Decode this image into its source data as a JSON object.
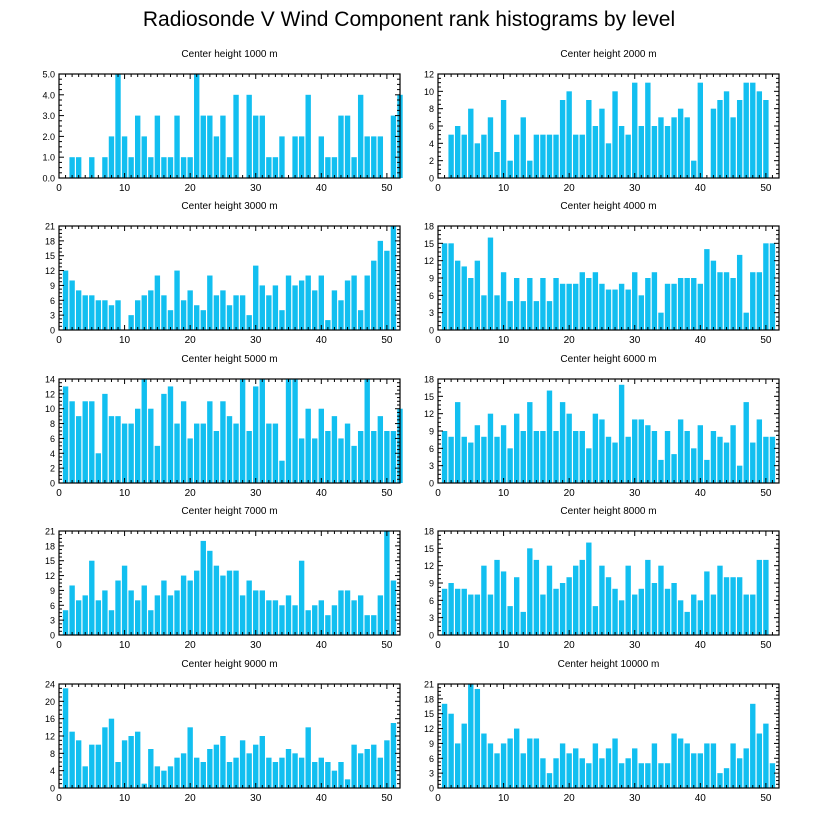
{
  "title": "Radiosonde V Wind Component rank histograms by level",
  "bar_color": "#12bff0",
  "chart_data": [
    {
      "type": "bar",
      "title": "Center height 1000 m",
      "ylim": [
        0,
        5
      ],
      "yticks": [
        0,
        1,
        2,
        3,
        4,
        5
      ],
      "ytick_labels": [
        "0.0",
        "1.0",
        "2.0",
        "3.0",
        "4.0",
        "5.0"
      ],
      "xlim": [
        0,
        52
      ],
      "xticks": [
        0,
        10,
        20,
        30,
        40,
        50
      ],
      "values": [
        0,
        1,
        1,
        0,
        1,
        0,
        1,
        2,
        5,
        2,
        1,
        3,
        2,
        1,
        3,
        1,
        1,
        3,
        1,
        1,
        5,
        3,
        3,
        2,
        3,
        1,
        4,
        0,
        4,
        3,
        3,
        1,
        1,
        2,
        0,
        2,
        2,
        4,
        0,
        2,
        1,
        1,
        3,
        3,
        1,
        4,
        2,
        2,
        2,
        0,
        3,
        4
      ]
    },
    {
      "type": "bar",
      "title": "Center height 2000 m",
      "ylim": [
        0,
        12
      ],
      "yticks": [
        0,
        2,
        4,
        6,
        8,
        10,
        12
      ],
      "ytick_labels": [
        "0",
        "2",
        "4",
        "6",
        "8",
        "10",
        "12"
      ],
      "xlim": [
        0,
        52
      ],
      "xticks": [
        0,
        10,
        20,
        30,
        40,
        50
      ],
      "values": [
        0,
        5,
        6,
        5,
        8,
        4,
        5,
        7,
        3,
        9,
        2,
        5,
        7,
        2,
        5,
        5,
        5,
        5,
        9,
        10,
        5,
        5,
        9,
        6,
        8,
        4,
        10,
        6,
        5,
        11,
        6,
        11,
        6,
        7,
        6,
        7,
        8,
        7,
        2,
        11,
        0,
        8,
        9,
        10,
        7,
        9,
        11,
        11,
        10,
        9,
        0,
        0
      ]
    },
    {
      "type": "bar",
      "title": "Center height 3000 m",
      "ylim": [
        0,
        21
      ],
      "yticks": [
        0,
        3,
        6,
        9,
        12,
        15,
        18,
        21
      ],
      "ytick_labels": [
        "0",
        "3",
        "6",
        "9",
        "12",
        "15",
        "18",
        "21"
      ],
      "xlim": [
        0,
        52
      ],
      "xticks": [
        0,
        10,
        20,
        30,
        40,
        50
      ],
      "values": [
        12,
        10,
        8,
        7,
        7,
        6,
        6,
        5,
        6,
        0,
        3,
        6,
        7,
        8,
        11,
        7,
        4,
        12,
        6,
        8,
        5,
        4,
        11,
        7,
        8,
        5,
        7,
        7,
        3,
        13,
        9,
        7,
        9,
        4,
        11,
        9,
        10,
        11,
        8,
        11,
        2,
        8,
        6,
        10,
        11,
        4,
        11,
        14,
        18,
        16,
        21,
        0
      ]
    },
    {
      "type": "bar",
      "title": "Center height 4000 m",
      "ylim": [
        0,
        18
      ],
      "yticks": [
        0,
        3,
        6,
        9,
        12,
        15,
        18
      ],
      "ytick_labels": [
        "0",
        "3",
        "6",
        "9",
        "12",
        "15",
        "18"
      ],
      "xlim": [
        0,
        52
      ],
      "xticks": [
        0,
        10,
        20,
        30,
        40,
        50
      ],
      "values": [
        15,
        15,
        12,
        11,
        9,
        12,
        6,
        16,
        6,
        10,
        5,
        9,
        5,
        9,
        5,
        9,
        5,
        9,
        8,
        8,
        8,
        10,
        9,
        10,
        8,
        7,
        7,
        8,
        7,
        10,
        6,
        9,
        10,
        3,
        8,
        8,
        9,
        9,
        9,
        8,
        14,
        12,
        10,
        10,
        9,
        13,
        3,
        10,
        10,
        15,
        15,
        0
      ]
    },
    {
      "type": "bar",
      "title": "Center height 5000 m",
      "ylim": [
        0,
        14
      ],
      "yticks": [
        0,
        2,
        4,
        6,
        8,
        10,
        12,
        14
      ],
      "ytick_labels": [
        "0",
        "2",
        "4",
        "6",
        "8",
        "10",
        "12",
        "14"
      ],
      "xlim": [
        0,
        52
      ],
      "xticks": [
        0,
        10,
        20,
        30,
        40,
        50
      ],
      "values": [
        13,
        11,
        9,
        11,
        11,
        4,
        12,
        9,
        9,
        8,
        8,
        10,
        14,
        10,
        5,
        12,
        13,
        8,
        11,
        6,
        8,
        8,
        11,
        7,
        11,
        9,
        8,
        14,
        7,
        13,
        14,
        8,
        8,
        3,
        14,
        14,
        6,
        10,
        6,
        10,
        7,
        9,
        6,
        8,
        5,
        7,
        14,
        7,
        9,
        7,
        7,
        10
      ]
    },
    {
      "type": "bar",
      "title": "Center height 6000 m",
      "ylim": [
        0,
        18
      ],
      "yticks": [
        0,
        3,
        6,
        9,
        12,
        15,
        18
      ],
      "ytick_labels": [
        "0",
        "3",
        "6",
        "9",
        "12",
        "15",
        "18"
      ],
      "xlim": [
        0,
        52
      ],
      "xticks": [
        0,
        10,
        20,
        30,
        40,
        50
      ],
      "values": [
        9,
        8,
        14,
        8,
        7,
        10,
        8,
        12,
        8,
        10,
        6,
        12,
        9,
        14,
        9,
        9,
        16,
        9,
        14,
        12,
        9,
        9,
        6,
        12,
        11,
        8,
        7,
        17,
        8,
        11,
        11,
        10,
        9,
        4,
        9,
        5,
        11,
        9,
        6,
        10,
        4,
        9,
        8,
        7,
        10,
        3,
        14,
        7,
        11,
        8,
        8,
        0
      ]
    },
    {
      "type": "bar",
      "title": "Center height 7000 m",
      "ylim": [
        0,
        21
      ],
      "yticks": [
        0,
        3,
        6,
        9,
        12,
        15,
        18,
        21
      ],
      "ytick_labels": [
        "0",
        "3",
        "6",
        "9",
        "12",
        "15",
        "18",
        "21"
      ],
      "xlim": [
        0,
        52
      ],
      "xticks": [
        0,
        10,
        20,
        30,
        40,
        50
      ],
      "values": [
        5,
        10,
        7,
        8,
        15,
        7,
        9,
        5,
        11,
        14,
        9,
        7,
        10,
        5,
        8,
        11,
        8,
        9,
        12,
        11,
        13,
        19,
        17,
        14,
        12,
        13,
        13,
        8,
        11,
        9,
        9,
        7,
        7,
        6,
        8,
        6,
        15,
        5,
        6,
        7,
        4,
        6,
        9,
        9,
        7,
        8,
        4,
        4,
        8,
        21,
        11,
        0
      ]
    },
    {
      "type": "bar",
      "title": "Center height 8000 m",
      "ylim": [
        0,
        18
      ],
      "yticks": [
        0,
        3,
        6,
        9,
        12,
        15,
        18
      ],
      "ytick_labels": [
        "0",
        "3",
        "6",
        "9",
        "12",
        "15",
        "18"
      ],
      "xlim": [
        0,
        52
      ],
      "xticks": [
        0,
        10,
        20,
        30,
        40,
        50
      ],
      "values": [
        8,
        9,
        8,
        8,
        7,
        7,
        12,
        7,
        13,
        11,
        5,
        10,
        4,
        15,
        13,
        7,
        12,
        8,
        9,
        10,
        12,
        13,
        16,
        5,
        12,
        10,
        8,
        6,
        12,
        7,
        8,
        13,
        9,
        12,
        8,
        9,
        6,
        4,
        7,
        6,
        11,
        7,
        12,
        10,
        10,
        10,
        7,
        7,
        13,
        13,
        0,
        0
      ]
    },
    {
      "type": "bar",
      "title": "Center height 9000 m",
      "ylim": [
        0,
        24
      ],
      "yticks": [
        0,
        4,
        8,
        12,
        16,
        20,
        24
      ],
      "ytick_labels": [
        "0",
        "4",
        "8",
        "12",
        "16",
        "20",
        "24"
      ],
      "xlim": [
        0,
        52
      ],
      "xticks": [
        0,
        10,
        20,
        30,
        40,
        50
      ],
      "values": [
        23,
        13,
        11,
        5,
        10,
        10,
        14,
        16,
        6,
        11,
        12,
        13,
        1,
        9,
        5,
        4,
        5,
        7,
        8,
        14,
        7,
        6,
        9,
        10,
        12,
        6,
        7,
        11,
        8,
        10,
        12,
        7,
        6,
        7,
        9,
        8,
        7,
        14,
        6,
        7,
        6,
        4,
        6,
        2,
        10,
        8,
        9,
        10,
        7,
        11,
        15,
        0
      ]
    },
    {
      "type": "bar",
      "title": "Center height 10000 m",
      "ylim": [
        0,
        21
      ],
      "yticks": [
        0,
        3,
        6,
        9,
        12,
        15,
        18,
        21
      ],
      "ytick_labels": [
        "0",
        "3",
        "6",
        "9",
        "12",
        "15",
        "18",
        "21"
      ],
      "xlim": [
        0,
        52
      ],
      "xticks": [
        0,
        10,
        20,
        30,
        40,
        50
      ],
      "values": [
        17,
        15,
        9,
        13,
        21,
        20,
        11,
        9,
        7,
        9,
        10,
        12,
        7,
        10,
        10,
        6,
        3,
        6,
        9,
        7,
        8,
        6,
        5,
        9,
        6,
        8,
        10,
        5,
        6,
        8,
        5,
        5,
        9,
        5,
        5,
        11,
        10,
        9,
        7,
        7,
        9,
        9,
        3,
        4,
        9,
        6,
        8,
        17,
        11,
        13,
        5,
        0
      ]
    }
  ]
}
